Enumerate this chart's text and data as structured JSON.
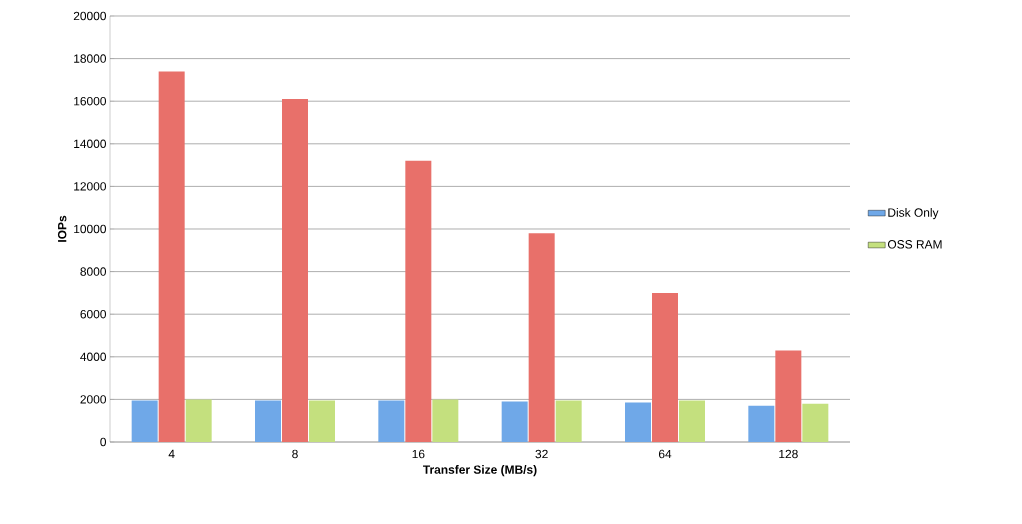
{
  "chart_data": {
    "type": "bar",
    "xlabel": "Transfer Size (MB/s)",
    "ylabel": "IOPs",
    "categories": [
      "4",
      "8",
      "16",
      "32",
      "64",
      "128"
    ],
    "series": [
      {
        "name": "Disk Only",
        "color": "#6fa8e8",
        "values": [
          1950,
          1950,
          1950,
          1900,
          1850,
          1700
        ]
      },
      {
        "color": "#e8706a",
        "values": [
          17400,
          16100,
          13200,
          9800,
          7000,
          4300
        ]
      },
      {
        "name": "OSS RAM",
        "color": "#c4e07e",
        "values": [
          2000,
          1950,
          2000,
          1950,
          1950,
          1800
        ]
      }
    ],
    "ylim": [
      0,
      20000
    ],
    "yticks": [
      0,
      2000,
      4000,
      6000,
      8000,
      10000,
      12000,
      14000,
      16000,
      18000,
      20000
    ],
    "grid": "y",
    "legend": "right"
  }
}
